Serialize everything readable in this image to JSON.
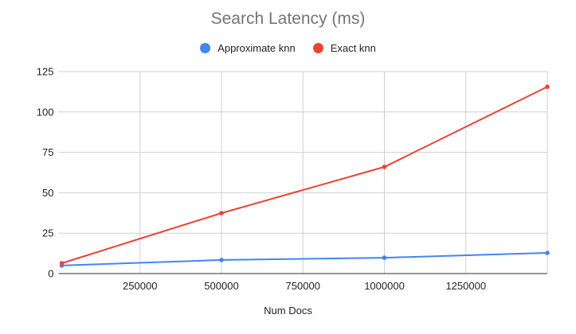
{
  "chart_data": {
    "type": "line",
    "title": "Search Latency (ms)",
    "xlabel": "Num Docs",
    "ylabel": "",
    "x": [
      10000,
      500000,
      1000000,
      1500000
    ],
    "series": [
      {
        "name": "Approximate knn",
        "color": "#4285f4",
        "values": [
          5,
          8.4,
          9.8,
          12.8
        ]
      },
      {
        "name": "Exact knn",
        "color": "#ea4335",
        "values": [
          6.4,
          37.4,
          66,
          115.6
        ]
      }
    ],
    "xlim": [
      0,
      1500000
    ],
    "ylim": [
      0,
      125
    ],
    "xticks": [
      "250000",
      "500000",
      "750000",
      "1000000",
      "1250000"
    ],
    "yticks": [
      "0",
      "25",
      "50",
      "75",
      "100",
      "125"
    ],
    "grid": true,
    "legend_position": "top"
  }
}
